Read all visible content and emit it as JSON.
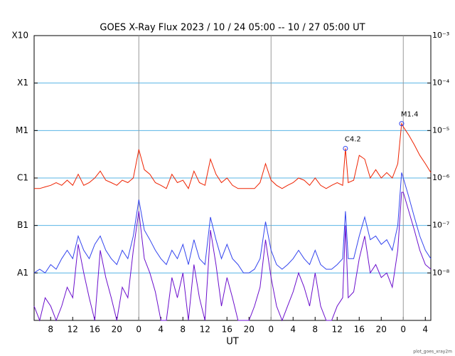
{
  "chart_data": {
    "type": "line",
    "title": "GOES X-Ray Flux   2023 / 10 / 24   05:00 -- 10 / 27   05:00   UT",
    "x_label": "UT",
    "footer": "plot_goes_xray2m",
    "yscale": "log",
    "grid": true,
    "xlim": [
      0,
      72
    ],
    "xticks": [
      {
        "value": 3,
        "label": "8"
      },
      {
        "value": 7,
        "label": "12"
      },
      {
        "value": 11,
        "label": "16"
      },
      {
        "value": 15,
        "label": "20"
      },
      {
        "value": 19,
        "label": "0"
      },
      {
        "value": 23,
        "label": "4"
      },
      {
        "value": 27,
        "label": "8"
      },
      {
        "value": 31,
        "label": "12"
      },
      {
        "value": 35,
        "label": "16"
      },
      {
        "value": 39,
        "label": "20"
      },
      {
        "value": 43,
        "label": "0"
      },
      {
        "value": 47,
        "label": "4"
      },
      {
        "value": 51,
        "label": "8"
      },
      {
        "value": 55,
        "label": "12"
      },
      {
        "value": 59,
        "label": "16"
      },
      {
        "value": 63,
        "label": "20"
      },
      {
        "value": 67,
        "label": "0"
      },
      {
        "value": 71,
        "label": "4"
      }
    ],
    "ylim": [
      1e-09,
      0.001
    ],
    "yticks": [
      {
        "value": 0.001,
        "label": "X10"
      },
      {
        "value": 0.0001,
        "label": "X1"
      },
      {
        "value": 1e-05,
        "label": "M1"
      },
      {
        "value": 1e-06,
        "label": "C1"
      },
      {
        "value": 1e-07,
        "label": "B1"
      },
      {
        "value": 1e-08,
        "label": "A1"
      }
    ],
    "y2lim": [
      1e-09,
      0.001
    ],
    "y2ticks": [
      {
        "value": 0.001,
        "label": "10⁻³"
      },
      {
        "value": 0.0001,
        "label": "10⁻⁴"
      },
      {
        "value": 1e-05,
        "label": "10⁻⁵"
      },
      {
        "value": 1e-06,
        "label": "10⁻⁶"
      },
      {
        "value": 1e-07,
        "label": "10⁻⁷"
      },
      {
        "value": 1e-08,
        "label": "10⁻⁸"
      }
    ],
    "x": [
      0,
      1,
      2,
      3,
      4,
      5,
      6,
      7,
      8,
      9,
      10,
      11,
      12,
      13,
      14,
      15,
      16,
      17,
      18,
      19,
      20,
      21,
      22,
      23,
      24,
      25,
      26,
      27,
      28,
      29,
      30,
      31,
      32,
      33,
      34,
      35,
      36,
      37,
      38,
      39,
      40,
      41,
      42,
      43,
      44,
      45,
      46,
      47,
      48,
      49,
      50,
      51,
      52,
      53,
      54,
      55,
      56,
      56.5,
      57,
      58,
      59,
      60,
      61,
      62,
      63,
      64,
      65,
      66,
      66.7,
      67,
      68,
      69,
      70,
      71,
      72
    ],
    "series": [
      {
        "color": "#ee2200",
        "values": [
          6e-07,
          6e-07,
          6.5e-07,
          7e-07,
          8e-07,
          7e-07,
          9e-07,
          7e-07,
          1.2e-06,
          7e-07,
          8e-07,
          1e-06,
          1.4e-06,
          9e-07,
          8e-07,
          7e-07,
          9e-07,
          8e-07,
          1e-06,
          4e-06,
          1.5e-06,
          1.2e-06,
          8e-07,
          7e-07,
          6e-07,
          1.2e-06,
          8e-07,
          9e-07,
          6e-07,
          1.4e-06,
          8e-07,
          7e-07,
          2.5e-06,
          1.2e-06,
          8e-07,
          1e-06,
          7e-07,
          6e-07,
          6e-07,
          6e-07,
          6e-07,
          8e-07,
          2e-06,
          9e-07,
          7e-07,
          6e-07,
          7e-07,
          8e-07,
          1e-06,
          9e-07,
          7e-07,
          1e-06,
          7e-07,
          6e-07,
          7e-07,
          8e-07,
          7e-07,
          4.2e-06,
          8e-07,
          9e-07,
          3e-06,
          2.5e-06,
          1e-06,
          1.5e-06,
          1e-06,
          1.3e-06,
          1e-06,
          2e-06,
          1.4e-05,
          1.2e-05,
          8e-06,
          5e-06,
          3e-06,
          2e-06,
          1.3e-06
        ]
      },
      {
        "color": "#3344ee",
        "values": [
          1e-08,
          1.2e-08,
          1e-08,
          1.5e-08,
          1.2e-08,
          2e-08,
          3e-08,
          2e-08,
          6e-08,
          3e-08,
          2e-08,
          4e-08,
          6e-08,
          3e-08,
          2e-08,
          1.5e-08,
          3e-08,
          2e-08,
          6e-08,
          3.5e-07,
          8e-08,
          5e-08,
          3e-08,
          2e-08,
          1.5e-08,
          3e-08,
          2e-08,
          4e-08,
          1.5e-08,
          5e-08,
          2e-08,
          1.5e-08,
          1.5e-07,
          5e-08,
          2e-08,
          4e-08,
          2e-08,
          1.5e-08,
          1e-08,
          1e-08,
          1.2e-08,
          2e-08,
          1.2e-07,
          3e-08,
          1.5e-08,
          1.2e-08,
          1.5e-08,
          2e-08,
          3e-08,
          2e-08,
          1.5e-08,
          3e-08,
          1.5e-08,
          1.2e-08,
          1.2e-08,
          1.5e-08,
          2e-08,
          2e-07,
          2e-08,
          2e-08,
          6e-08,
          1.5e-07,
          5e-08,
          6e-08,
          4e-08,
          5e-08,
          3e-08,
          1e-07,
          1.3e-06,
          1e-06,
          4e-07,
          1.5e-07,
          6e-08,
          3e-08,
          2e-08
        ]
      },
      {
        "color": "#6a0dcc",
        "values": [
          2e-09,
          1e-09,
          3e-09,
          2e-09,
          1e-09,
          2e-09,
          5e-09,
          3e-09,
          4e-08,
          1e-08,
          3e-09,
          1e-09,
          3e-08,
          8e-09,
          3e-09,
          1e-09,
          5e-09,
          3e-09,
          3e-08,
          2e-07,
          2e-08,
          1e-08,
          4e-09,
          1e-09,
          1e-09,
          8e-09,
          3e-09,
          1e-08,
          1e-09,
          1.5e-08,
          3e-09,
          1e-09,
          8e-08,
          1.5e-08,
          2e-09,
          8e-09,
          3e-09,
          1e-09,
          1e-09,
          1e-09,
          2e-09,
          5e-09,
          5e-08,
          8e-09,
          2e-09,
          1e-09,
          2e-09,
          4e-09,
          1e-08,
          5e-09,
          2e-09,
          1e-08,
          2e-09,
          1e-09,
          1e-09,
          2e-09,
          3e-09,
          1e-07,
          3e-09,
          4e-09,
          2e-08,
          6e-08,
          1e-08,
          1.5e-08,
          8e-09,
          1e-08,
          5e-09,
          3e-08,
          5e-07,
          5e-07,
          2e-07,
          8e-08,
          3e-08,
          1.5e-08,
          1.2e-08
        ]
      }
    ],
    "annotations": [
      {
        "text": "C4.2",
        "x": 56.5,
        "y": 4.2e-06
      },
      {
        "text": "M1.4",
        "x": 66.7,
        "y": 1.4e-05
      }
    ]
  }
}
